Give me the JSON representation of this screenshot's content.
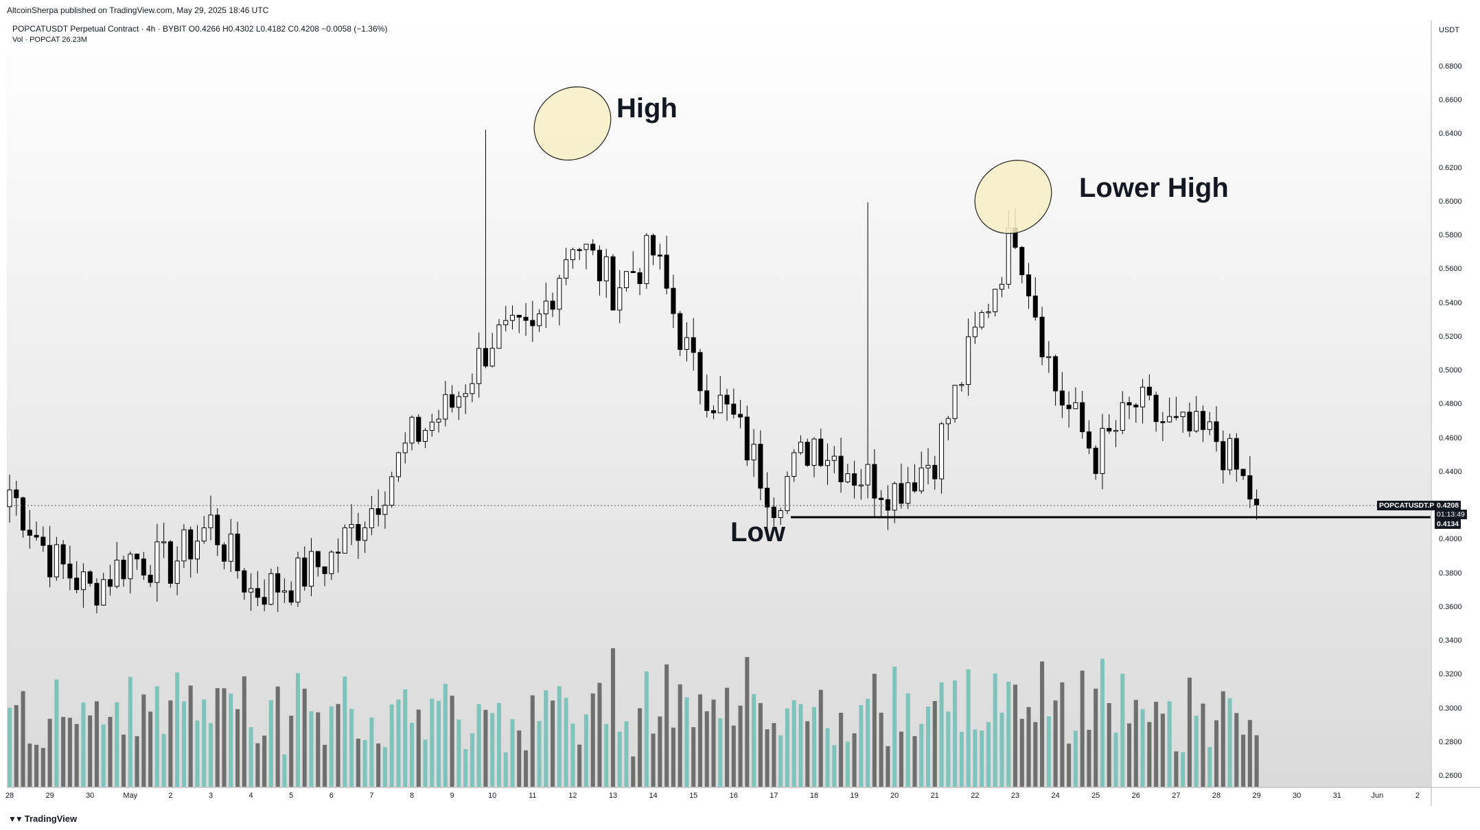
{
  "header": {
    "publisher_line": "AltcoinSherpa published on TradingView.com, May 29, 2025 18:46 UTC",
    "symbol_line": "POPCATUSDT Perpetual Contract · 4h · BYBIT  O0.4266  H0.4302  L0.4182  C0.4208  −0.0058 (−1.36%)",
    "volume_line": "Vol · POPCAT  26.23M"
  },
  "axis": {
    "currency": "USDT",
    "y_ticks": [
      "0.6800",
      "0.6600",
      "0.6400",
      "0.6200",
      "0.6000",
      "0.5800",
      "0.5600",
      "0.5400",
      "0.5200",
      "0.5000",
      "0.4800",
      "0.4600",
      "0.4400",
      "0.4000",
      "0.3800",
      "0.3600",
      "0.3400",
      "0.3200",
      "0.3000",
      "0.2800",
      "0.2600"
    ],
    "x_ticks": [
      "28",
      "29",
      "30",
      "May",
      "2",
      "3",
      "4",
      "5",
      "6",
      "7",
      "8",
      "9",
      "10",
      "11",
      "12",
      "13",
      "14",
      "15",
      "16",
      "17",
      "18",
      "19",
      "20",
      "21",
      "22",
      "23",
      "24",
      "25",
      "26",
      "27",
      "28",
      "29",
      "30",
      "31",
      "Jun",
      "2"
    ]
  },
  "price_badges": {
    "symbol": "POPCATUSDT.P",
    "last_price": "0.4208",
    "countdown": "01:13:49",
    "level_price": "0.4134"
  },
  "annotations": {
    "high": "High",
    "lower_high": "Lower High",
    "low": "Low"
  },
  "footer": {
    "brand": "TradingView"
  },
  "colors": {
    "up": "#ffffff",
    "down": "#000000",
    "vol_up": "#7fc4bc",
    "vol_down": "#6f6f6f",
    "highlight": "#f6eec4"
  },
  "chart_data": {
    "type": "candlestick",
    "timeframe": "4h",
    "x_range": [
      "Apr 28",
      "Jun 2"
    ],
    "ylim": [
      0.25,
      0.69
    ],
    "support_level": 0.4134,
    "last_close": 0.4208,
    "anchors": [
      {
        "day": "Apr 28",
        "price": 0.43
      },
      {
        "day": "Apr 29",
        "price": 0.39
      },
      {
        "day": "Apr 30",
        "price": 0.37
      },
      {
        "day": "May 1",
        "price": 0.39
      },
      {
        "day": "May 2",
        "price": 0.385
      },
      {
        "day": "May 3",
        "price": 0.41
      },
      {
        "day": "May 4",
        "price": 0.37
      },
      {
        "day": "May 5",
        "price": 0.375
      },
      {
        "day": "May 6",
        "price": 0.39
      },
      {
        "day": "May 7",
        "price": 0.42
      },
      {
        "day": "May 8",
        "price": 0.46
      },
      {
        "day": "May 9",
        "price": 0.48
      },
      {
        "day": "May 10",
        "price": 0.52
      },
      {
        "day": "May 11",
        "price": 0.52
      },
      {
        "day": "May 12",
        "price": 0.58
      },
      {
        "day": "May 13",
        "price": 0.55
      },
      {
        "day": "May 14",
        "price": 0.57
      },
      {
        "day": "May 15",
        "price": 0.5
      },
      {
        "day": "May 16",
        "price": 0.47
      },
      {
        "day": "May 17",
        "price": 0.425
      },
      {
        "day": "May 18",
        "price": 0.46
      },
      {
        "day": "May 19",
        "price": 0.44
      },
      {
        "day": "May 20",
        "price": 0.43
      },
      {
        "day": "May 21",
        "price": 0.45
      },
      {
        "day": "May 22",
        "price": 0.52
      },
      {
        "day": "May 23",
        "price": 0.585
      },
      {
        "day": "May 24",
        "price": 0.49
      },
      {
        "day": "May 25",
        "price": 0.45
      },
      {
        "day": "May 26",
        "price": 0.48
      },
      {
        "day": "May 27",
        "price": 0.465
      },
      {
        "day": "May 28",
        "price": 0.46
      },
      {
        "day": "May 29",
        "price": 0.4208
      }
    ],
    "extremes": {
      "high": 0.643,
      "lower_high": 0.6,
      "low": 0.415
    }
  }
}
